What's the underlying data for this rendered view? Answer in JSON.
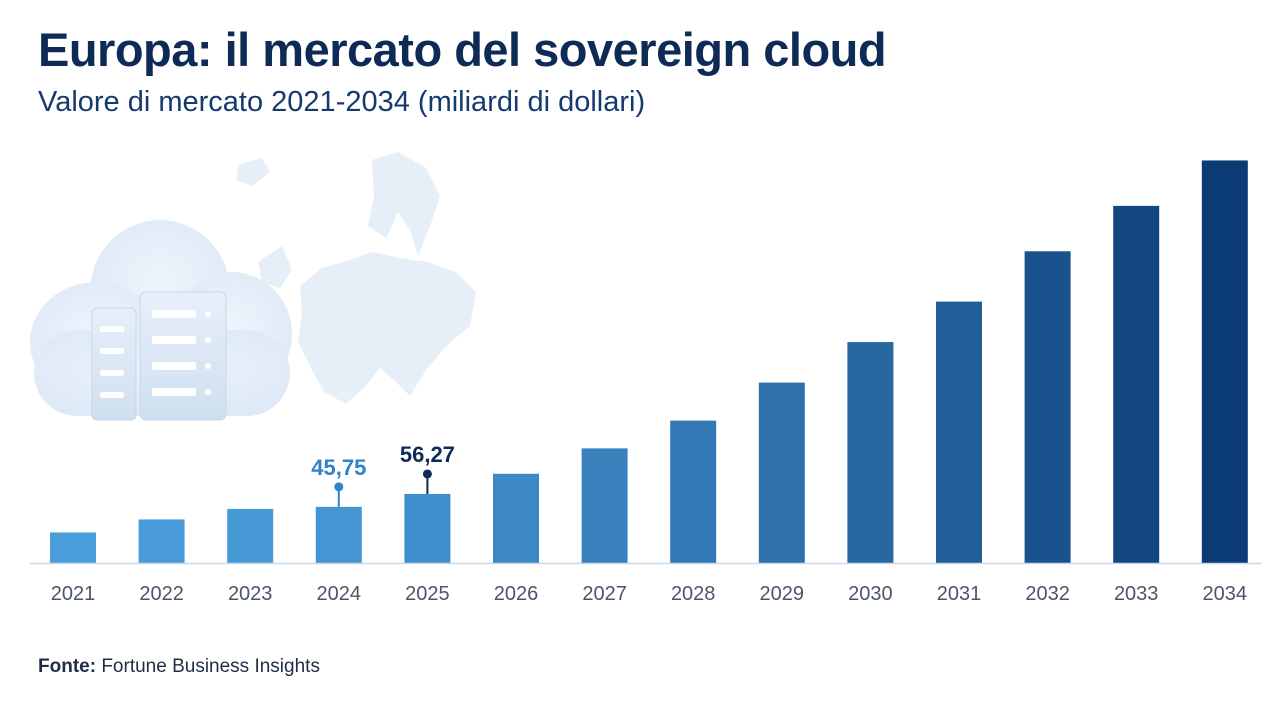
{
  "title": "Europa: il mercato del sovereign cloud",
  "subtitle": "Valore di mercato 2021-2034 (miliardi di dollari)",
  "source": {
    "label": "Fonte:",
    "text": "Fortune Business Insights"
  },
  "colors": {
    "title": "#0e2a56",
    "bar_light": "#4a9edb",
    "bar_dark": "#0b3b75",
    "callout_2024": "#2f82c8",
    "callout_2025": "#0e2a56",
    "axis": "#c9d9ea",
    "tick": "#4a5668"
  },
  "chart_data": {
    "type": "bar",
    "categories": [
      "2021",
      "2022",
      "2023",
      "2024",
      "2025",
      "2026",
      "2027",
      "2028",
      "2029",
      "2030",
      "2031",
      "2032",
      "2033",
      "2034"
    ],
    "values": [
      24.9,
      35.5,
      44.1,
      45.75,
      56.27,
      72.7,
      93.4,
      116,
      147,
      180,
      213,
      254,
      291,
      328
    ],
    "annotations": [
      {
        "category": "2024",
        "label": "45,75"
      },
      {
        "category": "2025",
        "label": "56,27"
      }
    ],
    "ylim": [
      0,
      330
    ],
    "grid": false,
    "xlabel": "",
    "ylabel": ""
  }
}
